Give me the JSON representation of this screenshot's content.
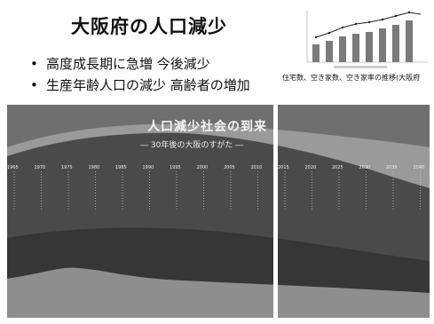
{
  "slide": {
    "title": "大阪府の人口減少",
    "bullets": [
      "高度成長期に急増 今後減少",
      "生産年齢人口の減少 高齢者の増加"
    ],
    "figure_caption": "住宅数、空き家数、空き家率の推移(大阪府"
  },
  "poster": {
    "title": "人口減少社会の到来",
    "subtitle": "― 30年後の大阪のすがた ―",
    "years": [
      "1965",
      "1970",
      "1975",
      "1980",
      "1985",
      "1990",
      "1995",
      "2000",
      "2005",
      "2010",
      "2015",
      "2020",
      "2025",
      "2030",
      "2035",
      "2040"
    ]
  },
  "colors": {
    "poster_top": "#6f6f6f",
    "band_light": "#9a9a9a",
    "band_mid": "#4a4a4a",
    "band_dark": "#363636",
    "band_bottom": "#8e8e8e"
  }
}
